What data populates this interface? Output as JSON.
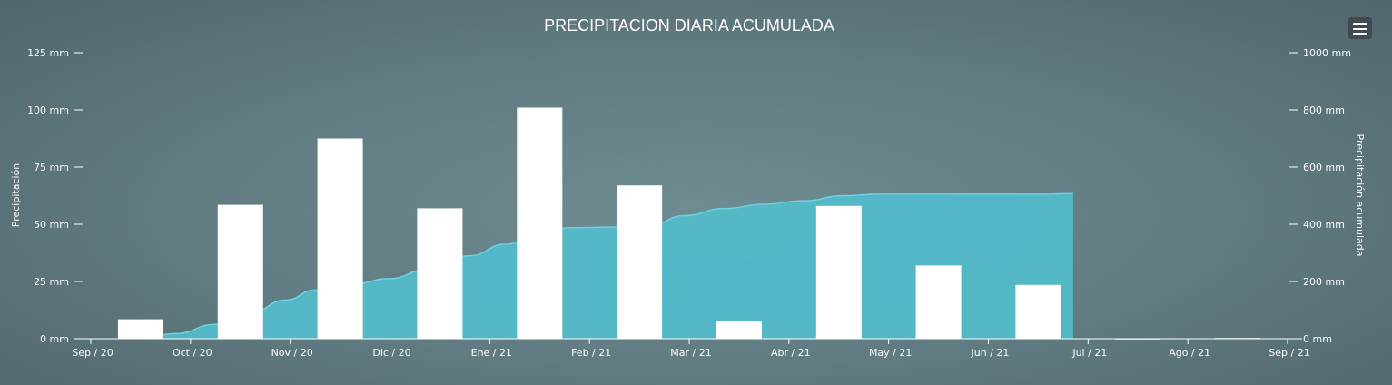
{
  "chart_data": {
    "type": "bar+area",
    "title": "PRECIPITACION DIARIA ACUMULADA",
    "ylabel_left": "Precipitación",
    "ylabel_right": "Precipitación acumulada",
    "y_left": {
      "ticks": [
        "0 mm",
        "25 mm",
        "50 mm",
        "75 mm",
        "100 mm",
        "125 mm"
      ],
      "range": [
        0,
        125
      ],
      "unit": "mm"
    },
    "y_right": {
      "ticks": [
        "0 mm",
        "200 mm",
        "400 mm",
        "600 mm",
        "800 mm",
        "1000 mm"
      ],
      "range": [
        0,
        1000
      ],
      "unit": "mm"
    },
    "x_ticks": [
      "Sep / 20",
      "Oct / 20",
      "Nov / 20",
      "Dic / 20",
      "Ene / 21",
      "Feb / 21",
      "Mar / 21",
      "Abr / 21",
      "May / 21",
      "Jun / 21",
      "Jul / 21",
      "Ago / 21",
      "Sep / 21"
    ],
    "series": [
      {
        "type": "column",
        "axis": "left",
        "color": "#ffffff",
        "values": [
          8.5,
          58.5,
          87.5,
          57,
          101,
          67,
          7.5,
          58,
          32,
          23.5,
          0,
          0.3
        ]
      },
      {
        "type": "area",
        "axis": "right",
        "color": "#52bccc",
        "points": [
          [
            0.55,
            5
          ],
          [
            0.85,
            18
          ],
          [
            1.25,
            50
          ],
          [
            1.6,
            90
          ],
          [
            1.95,
            135
          ],
          [
            2.25,
            170
          ],
          [
            2.6,
            190
          ],
          [
            3.0,
            210
          ],
          [
            3.35,
            240
          ],
          [
            3.8,
            290
          ],
          [
            4.15,
            330
          ],
          [
            4.5,
            365
          ],
          [
            4.8,
            388
          ],
          [
            5.2,
            390
          ],
          [
            5.6,
            395
          ],
          [
            5.95,
            430
          ],
          [
            6.35,
            455
          ],
          [
            6.75,
            470
          ],
          [
            7.15,
            482
          ],
          [
            7.55,
            500
          ],
          [
            7.9,
            505
          ],
          [
            8.3,
            505
          ],
          [
            8.7,
            505
          ],
          [
            9.1,
            505
          ],
          [
            9.5,
            505
          ],
          [
            9.85,
            507
          ]
        ]
      }
    ],
    "grid": false,
    "legend": "none"
  },
  "toolbar": {
    "menu_icon": "hamburger-menu-icon"
  }
}
